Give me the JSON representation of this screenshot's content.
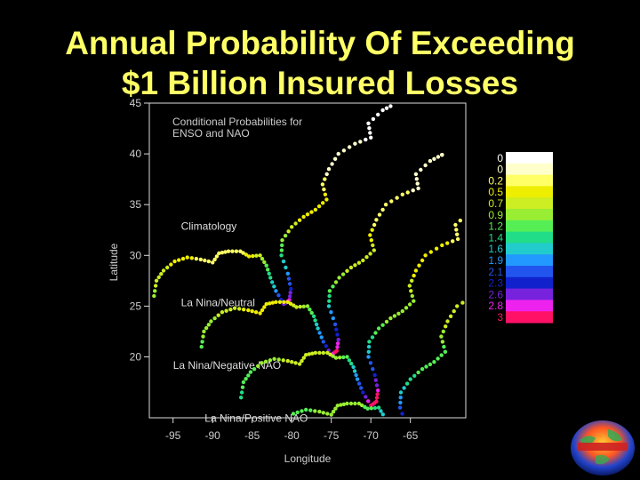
{
  "slide": {
    "title_line1": "Annual Probability Of Exceeding",
    "title_line2": "$1 Billion Insured Losses"
  },
  "chart_data": {
    "type": "scatter",
    "title": "Conditional Probabilities for ENSO and NAO",
    "xlabel": "Longitude",
    "ylabel": "Latitude",
    "xlim": [
      -98,
      -58
    ],
    "ylim": [
      14,
      45
    ],
    "xticks": [
      -95,
      -90,
      -85,
      -80,
      -75,
      -70,
      -65
    ],
    "yticks": [
      20,
      25,
      30,
      35,
      40,
      45
    ],
    "grid": false,
    "legend": {
      "placement": "right",
      "labels": [
        "0",
        "0",
        "0.2",
        "0.5",
        "0.7",
        "0.9",
        "1.2",
        "1.4",
        "1.6",
        "1.9",
        "2.1",
        "2.3",
        "2.6",
        "2.8",
        "3"
      ],
      "colors": [
        "#FFFFFF",
        "#FFFFCC",
        "#FFFF66",
        "#EEEE00",
        "#CCEE22",
        "#99EE33",
        "#55EE55",
        "#22DD88",
        "#22CCCC",
        "#2299FF",
        "#2255EE",
        "#1122CC",
        "#7722DD",
        "#EE22EE",
        "#FF1166"
      ]
    },
    "panels": [
      {
        "name": "Climatology",
        "shift_lon": 0,
        "shift_lat": 0
      },
      {
        "name": "La Nina/Neutral",
        "shift_lon": 6,
        "shift_lat": -5
      },
      {
        "name": "La Nina/Negative NAO",
        "shift_lon": 11,
        "shift_lat": -10
      },
      {
        "name": "La Nina/Positive NAO",
        "shift_lon": 15,
        "shift_lat": -15
      }
    ],
    "coastline": [
      {
        "lon": -97.4,
        "lat": 26.0,
        "level": 5
      },
      {
        "lon": -97.1,
        "lat": 27.5,
        "level": 4
      },
      {
        "lon": -96.2,
        "lat": 28.5,
        "level": 4
      },
      {
        "lon": -94.8,
        "lat": 29.4,
        "level": 3
      },
      {
        "lon": -93.2,
        "lat": 29.8,
        "level": 3
      },
      {
        "lon": -91.5,
        "lat": 29.6,
        "level": 2
      },
      {
        "lon": -90.0,
        "lat": 29.3,
        "level": 2
      },
      {
        "lon": -89.2,
        "lat": 30.2,
        "level": 2
      },
      {
        "lon": -88.0,
        "lat": 30.4,
        "level": 2
      },
      {
        "lon": -86.5,
        "lat": 30.4,
        "level": 2
      },
      {
        "lon": -85.4,
        "lat": 29.9,
        "level": 3
      },
      {
        "lon": -84.0,
        "lat": 30.0,
        "level": 4
      },
      {
        "lon": -83.2,
        "lat": 29.0,
        "level": 6
      },
      {
        "lon": -82.7,
        "lat": 27.8,
        "level": 7
      },
      {
        "lon": -82.0,
        "lat": 26.5,
        "level": 9
      },
      {
        "lon": -81.0,
        "lat": 25.2,
        "level": 12
      },
      {
        "lon": -80.3,
        "lat": 25.6,
        "level": 13
      },
      {
        "lon": -80.1,
        "lat": 26.7,
        "level": 11
      },
      {
        "lon": -80.5,
        "lat": 28.2,
        "level": 9
      },
      {
        "lon": -81.3,
        "lat": 30.0,
        "level": 7
      },
      {
        "lon": -81.2,
        "lat": 31.5,
        "level": 5
      },
      {
        "lon": -80.0,
        "lat": 32.8,
        "level": 4
      },
      {
        "lon": -78.5,
        "lat": 33.8,
        "level": 3
      },
      {
        "lon": -77.0,
        "lat": 34.5,
        "level": 3
      },
      {
        "lon": -75.6,
        "lat": 35.5,
        "level": 3
      },
      {
        "lon": -76.1,
        "lat": 37.0,
        "level": 2
      },
      {
        "lon": -75.3,
        "lat": 38.5,
        "level": 1
      },
      {
        "lon": -74.1,
        "lat": 40.0,
        "level": 1
      },
      {
        "lon": -72.0,
        "lat": 41.0,
        "level": 1
      },
      {
        "lon": -70.0,
        "lat": 41.6,
        "level": 0
      },
      {
        "lon": -70.3,
        "lat": 43.0,
        "level": 0
      },
      {
        "lon": -68.5,
        "lat": 44.3,
        "level": 0
      },
      {
        "lon": -67.0,
        "lat": 44.9,
        "level": 0
      }
    ]
  }
}
